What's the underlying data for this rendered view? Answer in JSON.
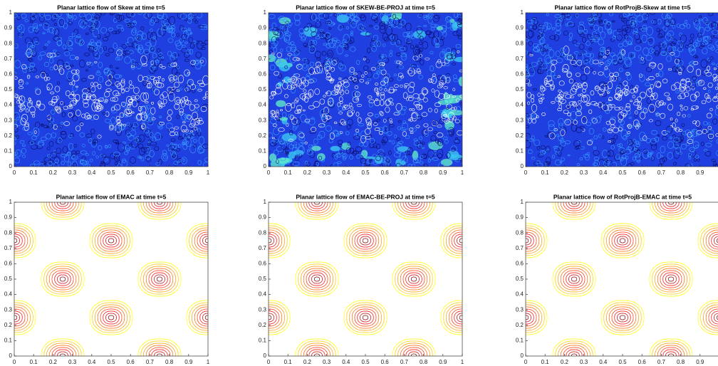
{
  "chart_data": [
    {
      "type": "contour",
      "title": "Planar lattice flow of Skew at time t=5",
      "field": "noisy",
      "xlim": [
        0,
        1
      ],
      "ylim": [
        0,
        1
      ],
      "xticks": [
        0,
        0.1,
        0.2,
        0.3,
        0.4,
        0.5,
        0.6,
        0.7,
        0.8,
        0.9,
        1
      ],
      "yticks": [
        0,
        0.1,
        0.2,
        0.3,
        0.4,
        0.5,
        0.6,
        0.7,
        0.8,
        0.9,
        1
      ]
    },
    {
      "type": "contour",
      "title": "Planar lattice flow of SKEW-BE-PROJ at time t=5",
      "field": "noisy-edge",
      "xlim": [
        0,
        1
      ],
      "ylim": [
        0,
        1
      ],
      "xticks": [
        0,
        0.1,
        0.2,
        0.3,
        0.4,
        0.5,
        0.6,
        0.7,
        0.8,
        0.9,
        1
      ],
      "yticks": [
        0,
        0.1,
        0.2,
        0.3,
        0.4,
        0.5,
        0.6,
        0.7,
        0.8,
        0.9,
        1
      ]
    },
    {
      "type": "contour",
      "title": "Planar lattice flow of RotProjB-Skew at time t=5",
      "field": "noisy",
      "xlim": [
        0,
        1
      ],
      "ylim": [
        0,
        1
      ],
      "xticks": [
        0,
        0.1,
        0.2,
        0.3,
        0.4,
        0.5,
        0.6,
        0.7,
        0.8,
        0.9,
        1
      ],
      "yticks": [
        0,
        0.1,
        0.2,
        0.3,
        0.4,
        0.5,
        0.6,
        0.7,
        0.8,
        0.9,
        1
      ]
    },
    {
      "type": "contour",
      "title": "Planar lattice flow of EMAC at time t=5",
      "field": "lattice",
      "xlim": [
        0,
        1
      ],
      "ylim": [
        0,
        1
      ],
      "xticks": [
        0,
        0.1,
        0.2,
        0.3,
        0.4,
        0.5,
        0.6,
        0.7,
        0.8,
        0.9,
        1
      ],
      "yticks": [
        0,
        0.1,
        0.2,
        0.3,
        0.4,
        0.5,
        0.6,
        0.7,
        0.8,
        0.9,
        1
      ]
    },
    {
      "type": "contour",
      "title": "Planar lattice flow of EMAC-BE-PROJ at time t=5",
      "field": "lattice",
      "xlim": [
        0,
        1
      ],
      "ylim": [
        0,
        1
      ],
      "xticks": [
        0,
        0.1,
        0.2,
        0.3,
        0.4,
        0.5,
        0.6,
        0.7,
        0.8,
        0.9,
        1
      ],
      "yticks": [
        0,
        0.1,
        0.2,
        0.3,
        0.4,
        0.5,
        0.6,
        0.7,
        0.8,
        0.9,
        1
      ]
    },
    {
      "type": "contour",
      "title": "Planar lattice flow of RotProjB-EMAC at time t=5",
      "field": "lattice",
      "xlim": [
        0,
        1
      ],
      "ylim": [
        0,
        1
      ],
      "xticks": [
        0,
        0.1,
        0.2,
        0.3,
        0.4,
        0.5,
        0.6,
        0.7,
        0.8,
        0.9,
        1
      ],
      "yticks": [
        0,
        0.1,
        0.2,
        0.3,
        0.4,
        0.5,
        0.6,
        0.7,
        0.8,
        0.9,
        1
      ]
    }
  ]
}
